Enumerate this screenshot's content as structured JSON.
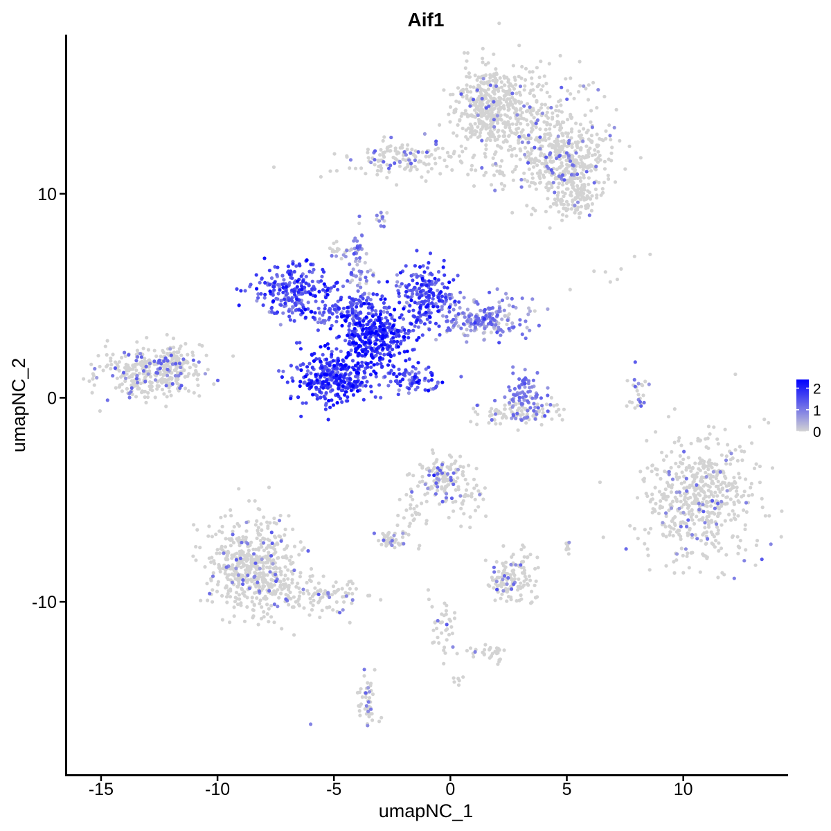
{
  "chart_data": {
    "type": "scatter",
    "title": "Aif1",
    "xlabel": "umapNC_1",
    "ylabel": "umapNC_2",
    "xlim": [
      -16.5,
      14.5
    ],
    "ylim": [
      -18.5,
      17.8
    ],
    "x_ticks": [
      -15,
      -10,
      -5,
      0,
      5,
      10
    ],
    "x_tick_labels": [
      "-15",
      "-10",
      "-5",
      "0",
      "5",
      "10"
    ],
    "y_ticks": [
      -10,
      0,
      10
    ],
    "y_tick_labels": [
      "-10",
      "0",
      "10"
    ],
    "color_scale": {
      "name": "expression",
      "low_color": "#d3d3d3",
      "high_color": "#0000ff",
      "min": 0,
      "max": 2.4,
      "ticks": [
        0,
        1,
        2
      ],
      "tick_labels": [
        "0",
        "1",
        "2"
      ]
    },
    "legend_position": "right",
    "grid": false,
    "clusters": [
      {
        "cx": 3.5,
        "cy": 13.2,
        "sx": 1.6,
        "sy": 1.6,
        "n": 420,
        "expr": 0.03
      },
      {
        "cx": 1.6,
        "cy": 14.3,
        "sx": 0.7,
        "sy": 0.9,
        "n": 320,
        "expr": 0.02
      },
      {
        "cx": 5.0,
        "cy": 11.6,
        "sx": 0.9,
        "sy": 0.7,
        "n": 260,
        "expr": 0.04
      },
      {
        "cx": 5.3,
        "cy": 9.8,
        "sx": 0.6,
        "sy": 0.5,
        "n": 120,
        "expr": 0.03
      },
      {
        "cx": -2.2,
        "cy": 11.7,
        "sx": 1.3,
        "sy": 0.45,
        "n": 140,
        "expr": 0.05
      },
      {
        "cx": -12.8,
        "cy": 1.2,
        "sx": 1.1,
        "sy": 0.6,
        "n": 320,
        "expr": 0.06
      },
      {
        "cx": -11.8,
        "cy": 2.0,
        "sx": 0.4,
        "sy": 0.4,
        "n": 60,
        "expr": 0.03
      },
      {
        "cx": -6.8,
        "cy": 5.3,
        "sx": 0.9,
        "sy": 0.6,
        "n": 220,
        "expr": 1.45
      },
      {
        "cx": -5.0,
        "cy": 1.0,
        "sx": 0.85,
        "sy": 0.65,
        "n": 320,
        "expr": 1.7
      },
      {
        "cx": -3.2,
        "cy": 2.8,
        "sx": 0.7,
        "sy": 0.6,
        "n": 300,
        "expr": 1.8
      },
      {
        "cx": -1.0,
        "cy": 5.0,
        "sx": 0.6,
        "sy": 0.8,
        "n": 200,
        "expr": 1.5
      },
      {
        "cx": 1.5,
        "cy": 4.0,
        "sx": 0.9,
        "sy": 0.5,
        "n": 200,
        "expr": 0.7
      },
      {
        "cx": -4.3,
        "cy": 4.3,
        "sx": 1.1,
        "sy": 0.5,
        "n": 160,
        "expr": 1.4
      },
      {
        "cx": -3.9,
        "cy": 6.3,
        "sx": 0.25,
        "sy": 1.0,
        "n": 60,
        "expr": 0.6
      },
      {
        "cx": -1.7,
        "cy": 1.0,
        "sx": 0.7,
        "sy": 0.35,
        "n": 70,
        "expr": 1.4
      },
      {
        "cx": -4.7,
        "cy": 7.3,
        "sx": 0.25,
        "sy": 0.2,
        "n": 20,
        "expr": 0.1
      },
      {
        "cx": -3.0,
        "cy": 8.8,
        "sx": 0.15,
        "sy": 0.3,
        "n": 12,
        "expr": 0.2
      },
      {
        "cx": 3.2,
        "cy": 0.2,
        "sx": 0.4,
        "sy": 0.6,
        "n": 70,
        "expr": 0.5
      },
      {
        "cx": 3.0,
        "cy": -0.7,
        "sx": 1.0,
        "sy": 0.3,
        "n": 110,
        "expr": 0.06
      },
      {
        "cx": 8.1,
        "cy": 0.3,
        "sx": 0.2,
        "sy": 0.5,
        "n": 25,
        "expr": 0.1
      },
      {
        "cx": 10.7,
        "cy": -4.9,
        "sx": 1.2,
        "sy": 1.6,
        "n": 540,
        "expr": 0.03
      },
      {
        "cx": -0.4,
        "cy": -3.9,
        "sx": 0.55,
        "sy": 0.55,
        "n": 130,
        "expr": 0.06
      },
      {
        "cx": 0.6,
        "cy": -4.9,
        "sx": 0.5,
        "sy": 0.5,
        "n": 40,
        "expr": 0.02
      },
      {
        "cx": -1.7,
        "cy": -5.8,
        "sx": 0.3,
        "sy": 0.8,
        "n": 30,
        "expr": 0.02
      },
      {
        "cx": -2.6,
        "cy": -6.9,
        "sx": 0.35,
        "sy": 0.25,
        "n": 40,
        "expr": 0.08
      },
      {
        "cx": 2.6,
        "cy": -8.8,
        "sx": 0.5,
        "sy": 0.6,
        "n": 130,
        "expr": 0.04
      },
      {
        "cx": 5.0,
        "cy": -7.3,
        "sx": 0.1,
        "sy": 0.25,
        "n": 10,
        "expr": 0.1
      },
      {
        "cx": -8.5,
        "cy": -8.3,
        "sx": 1.0,
        "sy": 1.2,
        "n": 540,
        "expr": 0.02
      },
      {
        "cx": -5.5,
        "cy": -9.7,
        "sx": 1.0,
        "sy": 0.45,
        "n": 90,
        "expr": 0.03
      },
      {
        "cx": -0.3,
        "cy": -11.4,
        "sx": 0.35,
        "sy": 0.9,
        "n": 40,
        "expr": 0.02
      },
      {
        "cx": 1.8,
        "cy": -12.5,
        "sx": 0.4,
        "sy": 0.25,
        "n": 30,
        "expr": 0.03
      },
      {
        "cx": -3.6,
        "cy": -14.9,
        "sx": 0.2,
        "sy": 0.6,
        "n": 50,
        "expr": 0.03
      },
      {
        "cx": 7.2,
        "cy": 6.1,
        "sx": 1.2,
        "sy": 0.6,
        "n": 8,
        "expr": 0.0
      },
      {
        "cx": 0.5,
        "cy": -13.8,
        "sx": 0.3,
        "sy": 0.2,
        "n": 6,
        "expr": 0.0
      }
    ],
    "highlight_points": [
      [
        -3.2,
        1.2,
        2.4
      ],
      [
        -3.5,
        3.4,
        2.2
      ],
      [
        -4.0,
        0.8,
        2.1
      ],
      [
        -2.8,
        2.6,
        2.2
      ],
      [
        -0.7,
        -3.8,
        2.0
      ],
      [
        -5.2,
        1.6,
        2.0
      ],
      [
        -3.0,
        3.0,
        2.1
      ],
      [
        -6.5,
        5.8,
        1.9
      ],
      [
        -1.6,
        0.8,
        1.6
      ],
      [
        3.2,
        0.7,
        1.5
      ],
      [
        2.0,
        -9.4,
        1.5
      ],
      [
        -2.4,
        11.5,
        1.3
      ],
      [
        5.0,
        12.0,
        1.2
      ],
      [
        -12.3,
        1.8,
        1.3
      ],
      [
        -13.1,
        0.8,
        1.2
      ],
      [
        -12.2,
        0.6,
        1.2
      ],
      [
        -8.7,
        -8.7,
        1.1
      ],
      [
        -2.5,
        -7.0,
        1.1
      ],
      [
        -3.6,
        -15.1,
        0.9
      ],
      [
        -6.0,
        -16.0,
        0.9
      ]
    ]
  }
}
